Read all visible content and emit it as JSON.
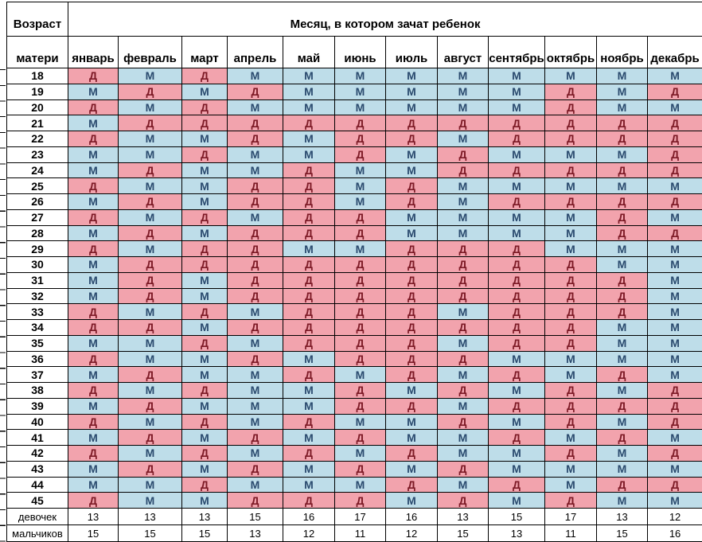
{
  "colors": {
    "girl_bg": "#f2a3ad",
    "boy_bg": "#bedde9",
    "girl_letter": "#7d1a26",
    "boy_letter": "#2a4a6e",
    "grid": "#000000"
  },
  "chart_data": {
    "type": "table",
    "title": "Месяц, в котором зачат ребенок",
    "header": {
      "age_top": "Возраст",
      "age_bottom": "матери",
      "months": [
        "январь",
        "февраль",
        "март",
        "апрель",
        "май",
        "июнь",
        "июль",
        "август",
        "сентябрь",
        "октябрь",
        "ноябрь",
        "декабрь"
      ]
    },
    "girl_symbol": "Д",
    "boy_symbol": "М",
    "rows": [
      {
        "age": "18",
        "cells": [
          "Д",
          "М",
          "Д",
          "М",
          "М",
          "М",
          "М",
          "М",
          "М",
          "М",
          "М",
          "М"
        ]
      },
      {
        "age": "19",
        "cells": [
          "М",
          "Д",
          "М",
          "Д",
          "М",
          "М",
          "М",
          "М",
          "М",
          "Д",
          "М",
          "Д"
        ]
      },
      {
        "age": "20",
        "cells": [
          "Д",
          "М",
          "Д",
          "М",
          "М",
          "М",
          "М",
          "М",
          "М",
          "Д",
          "М",
          "М"
        ]
      },
      {
        "age": "21",
        "cells": [
          "М",
          "Д",
          "Д",
          "Д",
          "Д",
          "Д",
          "Д",
          "Д",
          "Д",
          "Д",
          "Д",
          "Д"
        ]
      },
      {
        "age": "22",
        "cells": [
          "Д",
          "М",
          "М",
          "Д",
          "М",
          "Д",
          "Д",
          "М",
          "Д",
          "Д",
          "Д",
          "Д"
        ]
      },
      {
        "age": "23",
        "cells": [
          "М",
          "М",
          "Д",
          "М",
          "М",
          "Д",
          "М",
          "Д",
          "М",
          "М",
          "М",
          "Д"
        ]
      },
      {
        "age": "24",
        "cells": [
          "М",
          "Д",
          "М",
          "М",
          "Д",
          "М",
          "М",
          "Д",
          "Д",
          "Д",
          "Д",
          "Д"
        ]
      },
      {
        "age": "25",
        "cells": [
          "Д",
          "М",
          "М",
          "Д",
          "Д",
          "М",
          "Д",
          "М",
          "М",
          "М",
          "М",
          "М"
        ]
      },
      {
        "age": "26",
        "cells": [
          "М",
          "Д",
          "М",
          "Д",
          "Д",
          "М",
          "Д",
          "М",
          "Д",
          "Д",
          "Д",
          "Д"
        ]
      },
      {
        "age": "27",
        "cells": [
          "Д",
          "М",
          "Д",
          "М",
          "Д",
          "Д",
          "М",
          "М",
          "М",
          "М",
          "Д",
          "М"
        ]
      },
      {
        "age": "28",
        "cells": [
          "М",
          "Д",
          "М",
          "Д",
          "Д",
          "Д",
          "М",
          "М",
          "М",
          "М",
          "Д",
          "Д"
        ]
      },
      {
        "age": "29",
        "cells": [
          "Д",
          "М",
          "Д",
          "Д",
          "М",
          "М",
          "Д",
          "Д",
          "Д",
          "М",
          "М",
          "М"
        ]
      },
      {
        "age": "30",
        "cells": [
          "М",
          "Д",
          "Д",
          "Д",
          "Д",
          "Д",
          "Д",
          "Д",
          "Д",
          "Д",
          "М",
          "М"
        ]
      },
      {
        "age": "31",
        "cells": [
          "М",
          "Д",
          "М",
          "Д",
          "Д",
          "Д",
          "Д",
          "Д",
          "Д",
          "Д",
          "Д",
          "М"
        ]
      },
      {
        "age": "32",
        "cells": [
          "М",
          "Д",
          "М",
          "Д",
          "Д",
          "Д",
          "Д",
          "Д",
          "Д",
          "Д",
          "Д",
          "М"
        ]
      },
      {
        "age": "33",
        "cells": [
          "Д",
          "М",
          "Д",
          "М",
          "Д",
          "Д",
          "Д",
          "М",
          "Д",
          "Д",
          "Д",
          "М"
        ]
      },
      {
        "age": "34",
        "cells": [
          "Д",
          "Д",
          "М",
          "Д",
          "Д",
          "Д",
          "Д",
          "Д",
          "Д",
          "Д",
          "М",
          "М"
        ]
      },
      {
        "age": "35",
        "cells": [
          "М",
          "М",
          "Д",
          "М",
          "Д",
          "Д",
          "Д",
          "М",
          "Д",
          "Д",
          "М",
          "М"
        ]
      },
      {
        "age": "36",
        "cells": [
          "Д",
          "М",
          "М",
          "Д",
          "М",
          "Д",
          "Д",
          "Д",
          "М",
          "М",
          "М",
          "М"
        ]
      },
      {
        "age": "37",
        "cells": [
          "М",
          "Д",
          "М",
          "М",
          "Д",
          "М",
          "Д",
          "М",
          "Д",
          "М",
          "Д",
          "М"
        ]
      },
      {
        "age": "38",
        "cells": [
          "Д",
          "М",
          "Д",
          "М",
          "М",
          "Д",
          "М",
          "Д",
          "М",
          "Д",
          "М",
          "Д"
        ]
      },
      {
        "age": "39",
        "cells": [
          "М",
          "Д",
          "М",
          "М",
          "М",
          "Д",
          "Д",
          "М",
          "Д",
          "Д",
          "Д",
          "Д"
        ]
      },
      {
        "age": "40",
        "cells": [
          "Д",
          "М",
          "Д",
          "М",
          "Д",
          "М",
          "М",
          "Д",
          "М",
          "Д",
          "М",
          "Д"
        ]
      },
      {
        "age": "41",
        "cells": [
          "М",
          "Д",
          "М",
          "Д",
          "М",
          "Д",
          "М",
          "М",
          "Д",
          "М",
          "Д",
          "М"
        ]
      },
      {
        "age": "42",
        "cells": [
          "Д",
          "М",
          "Д",
          "М",
          "Д",
          "М",
          "Д",
          "М",
          "М",
          "Д",
          "М",
          "Д"
        ]
      },
      {
        "age": "43",
        "cells": [
          "М",
          "Д",
          "М",
          "Д",
          "М",
          "Д",
          "М",
          "Д",
          "М",
          "М",
          "М",
          "М"
        ]
      },
      {
        "age": "44",
        "cells": [
          "М",
          "М",
          "Д",
          "М",
          "М",
          "М",
          "Д",
          "М",
          "Д",
          "М",
          "Д",
          "Д"
        ]
      },
      {
        "age": "45",
        "cells": [
          "Д",
          "М",
          "М",
          "Д",
          "Д",
          "Д",
          "М",
          "Д",
          "М",
          "Д",
          "М",
          "М"
        ]
      }
    ],
    "totals": [
      {
        "label": "девочек",
        "values": [
          "13",
          "13",
          "13",
          "15",
          "16",
          "17",
          "16",
          "13",
          "15",
          "17",
          "13",
          "12"
        ]
      },
      {
        "label": "мальчиков",
        "values": [
          "15",
          "15",
          "15",
          "13",
          "12",
          "11",
          "12",
          "15",
          "13",
          "11",
          "15",
          "16"
        ]
      }
    ]
  }
}
